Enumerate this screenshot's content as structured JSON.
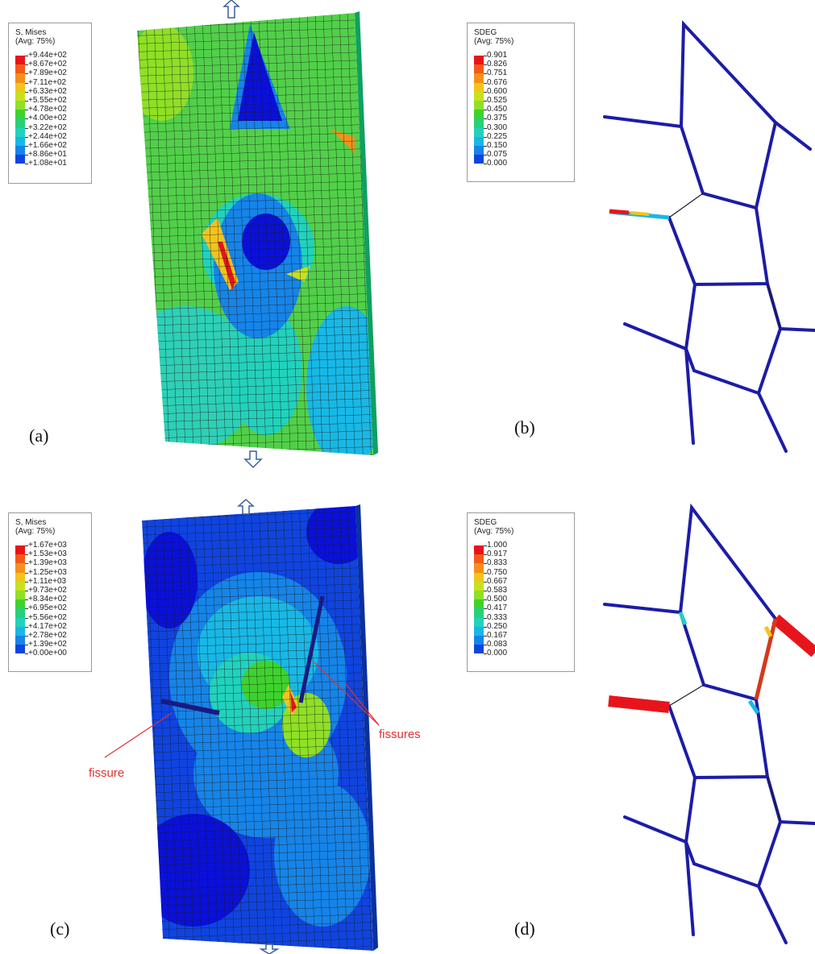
{
  "figure": {
    "panels": {
      "a": {
        "label": "(a)",
        "legend_title": "S, Mises\n(Avg: 75%)",
        "legend_values": [
          "+9.44e+02",
          "+8.67e+02",
          "+7.89e+02",
          "+7.11e+02",
          "+6.33e+02",
          "+5.55e+02",
          "+4.78e+02",
          "+4.00e+02",
          "+3.22e+02",
          "+2.44e+02",
          "+1.66e+02",
          "+8.86e+01",
          "+1.08e+01"
        ]
      },
      "b": {
        "label": "(b)",
        "legend_title": "SDEG\n(Avg: 75%)",
        "legend_values": [
          "0.901",
          "0.826",
          "0.751",
          "0.676",
          "0.600",
          "0.525",
          "0.450",
          "0.375",
          "0.300",
          "0.225",
          "0.150",
          "0.075",
          "0.000"
        ]
      },
      "c": {
        "label": "(c)",
        "legend_title": "S, Mises\n(Avg: 75%)",
        "legend_values": [
          "+1.67e+03",
          "+1.53e+03",
          "+1.39e+03",
          "+1.25e+03",
          "+1.11e+03",
          "+9.73e+02",
          "+8.34e+02",
          "+6.95e+02",
          "+5.56e+02",
          "+4.17e+02",
          "+2.78e+02",
          "+1.39e+02",
          "+0.00e+00"
        ],
        "annotations": {
          "fissure": "fissure",
          "fissures": "fissures"
        }
      },
      "d": {
        "label": "(d)",
        "legend_title": "SDEG\n(Avg: 75%)",
        "legend_values": [
          "1.000",
          "0.917",
          "0.833",
          "0.750",
          "0.667",
          "0.583",
          "0.500",
          "0.417",
          "0.333",
          "0.250",
          "0.167",
          "0.083",
          "0.000"
        ]
      }
    },
    "colormap": [
      "#e8141b",
      "#f35a16",
      "#f5901a",
      "#f2c41c",
      "#c8e01f",
      "#8fe026",
      "#3fd22e",
      "#27d07a",
      "#22d2bc",
      "#18b8e6",
      "#1684e8",
      "#1044e0",
      "#0a10d8"
    ]
  }
}
